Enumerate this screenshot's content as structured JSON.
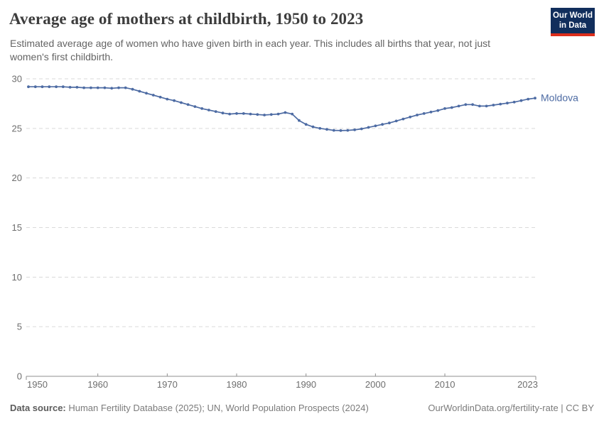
{
  "header": {
    "title": "Average age of mothers at childbirth, 1950 to 2023",
    "subtitle": "Estimated average age of women who have given birth in each year. This includes all births that year, not just women's first childbirth.",
    "logo_line1": "Our World",
    "logo_line2": "in Data"
  },
  "chart_data": {
    "type": "line",
    "title": "Average age of mothers at childbirth, 1950 to 2023",
    "xlabel": "",
    "ylabel": "",
    "xlim": [
      1950,
      2023
    ],
    "ylim": [
      0,
      30
    ],
    "xticks": [
      1950,
      1960,
      1970,
      1980,
      1990,
      2000,
      2010,
      2023
    ],
    "yticks": [
      0,
      5,
      10,
      15,
      20,
      25,
      30
    ],
    "grid": "horizontal-dashed",
    "legend_position": "line-end-label",
    "series": [
      {
        "name": "Moldova",
        "color": "#4d6ba3",
        "x": [
          1950,
          1951,
          1952,
          1953,
          1954,
          1955,
          1956,
          1957,
          1958,
          1959,
          1960,
          1961,
          1962,
          1963,
          1964,
          1965,
          1966,
          1967,
          1968,
          1969,
          1970,
          1971,
          1972,
          1973,
          1974,
          1975,
          1976,
          1977,
          1978,
          1979,
          1980,
          1981,
          1982,
          1983,
          1984,
          1985,
          1986,
          1987,
          1988,
          1989,
          1990,
          1991,
          1992,
          1993,
          1994,
          1995,
          1996,
          1997,
          1998,
          1999,
          2000,
          2001,
          2002,
          2003,
          2004,
          2005,
          2006,
          2007,
          2008,
          2009,
          2010,
          2011,
          2012,
          2013,
          2014,
          2015,
          2016,
          2017,
          2018,
          2019,
          2020,
          2021,
          2022,
          2023
        ],
        "values": [
          29.2,
          29.2,
          29.2,
          29.2,
          29.2,
          29.2,
          29.15,
          29.15,
          29.1,
          29.1,
          29.1,
          29.1,
          29.05,
          29.1,
          29.1,
          28.95,
          28.75,
          28.55,
          28.35,
          28.15,
          27.95,
          27.8,
          27.6,
          27.4,
          27.2,
          27.0,
          26.85,
          26.7,
          26.55,
          26.45,
          26.5,
          26.5,
          26.45,
          26.4,
          26.35,
          26.4,
          26.45,
          26.6,
          26.45,
          25.8,
          25.4,
          25.15,
          25.0,
          24.9,
          24.8,
          24.78,
          24.8,
          24.85,
          24.95,
          25.1,
          25.25,
          25.4,
          25.55,
          25.75,
          25.95,
          26.15,
          26.35,
          26.5,
          26.65,
          26.8,
          27.0,
          27.1,
          27.25,
          27.4,
          27.4,
          27.25,
          27.25,
          27.35,
          27.45,
          27.55,
          27.65,
          27.8,
          27.95,
          28.05
        ]
      }
    ]
  },
  "footer": {
    "source_label": "Data source:",
    "source_text": " Human Fertility Database (2025); UN, World Population Prospects (2024)",
    "right_text": "OurWorldinData.org/fertility-rate | CC BY"
  },
  "colors": {
    "line": "#4d6ba3",
    "gridline": "#dadada",
    "axis": "#8f8f8f",
    "tick_label": "#6e6e6e",
    "title": "#3d3d3d",
    "subtitle": "#646464",
    "footer": "#7b7b7b",
    "logo_bg": "#112e5c",
    "logo_stripe": "#dc2e1c"
  }
}
